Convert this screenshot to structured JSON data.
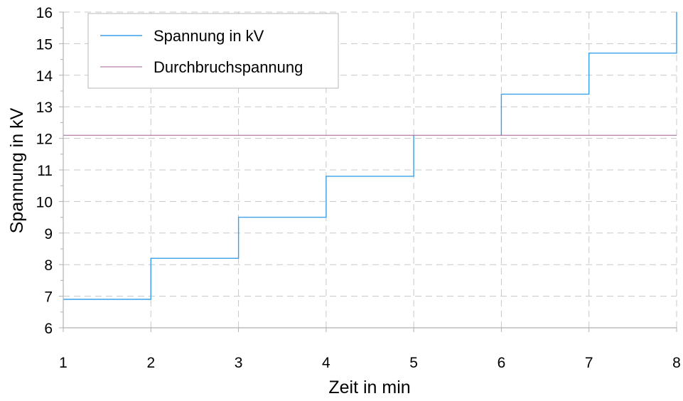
{
  "chart_data": {
    "type": "line",
    "xlabel": "Zeit in min",
    "ylabel": "Spannung in kV",
    "xlim": [
      1,
      8
    ],
    "ylim": [
      6,
      16
    ],
    "xticks": [
      "1",
      "2",
      "3",
      "4",
      "5",
      "6",
      "7",
      "8"
    ],
    "yticks": [
      "6",
      "7",
      "8",
      "9",
      "10",
      "11",
      "12",
      "13",
      "14",
      "15",
      "16"
    ],
    "grid": true,
    "legend_position": "top-left",
    "series": [
      {
        "name": "Spannung in kV",
        "color": "#3aa0e8",
        "step": true,
        "segments": [
          [
            [
              1,
              6.9
            ],
            [
              2,
              6.9
            ],
            [
              2,
              8.2
            ],
            [
              3,
              8.2
            ],
            [
              3,
              9.5
            ],
            [
              4,
              9.5
            ],
            [
              4,
              10.8
            ],
            [
              5,
              10.8
            ],
            [
              5,
              12.1
            ]
          ],
          [
            [
              6,
              12.1
            ],
            [
              6,
              13.4
            ],
            [
              7,
              13.4
            ],
            [
              7,
              14.7
            ],
            [
              8,
              14.7
            ],
            [
              8,
              16
            ]
          ]
        ]
      },
      {
        "name": "Durchbruchspannung",
        "color": "#a0609a",
        "step": false,
        "segments": [
          [
            [
              1,
              12.1
            ],
            [
              8,
              12.1
            ]
          ]
        ]
      }
    ]
  }
}
